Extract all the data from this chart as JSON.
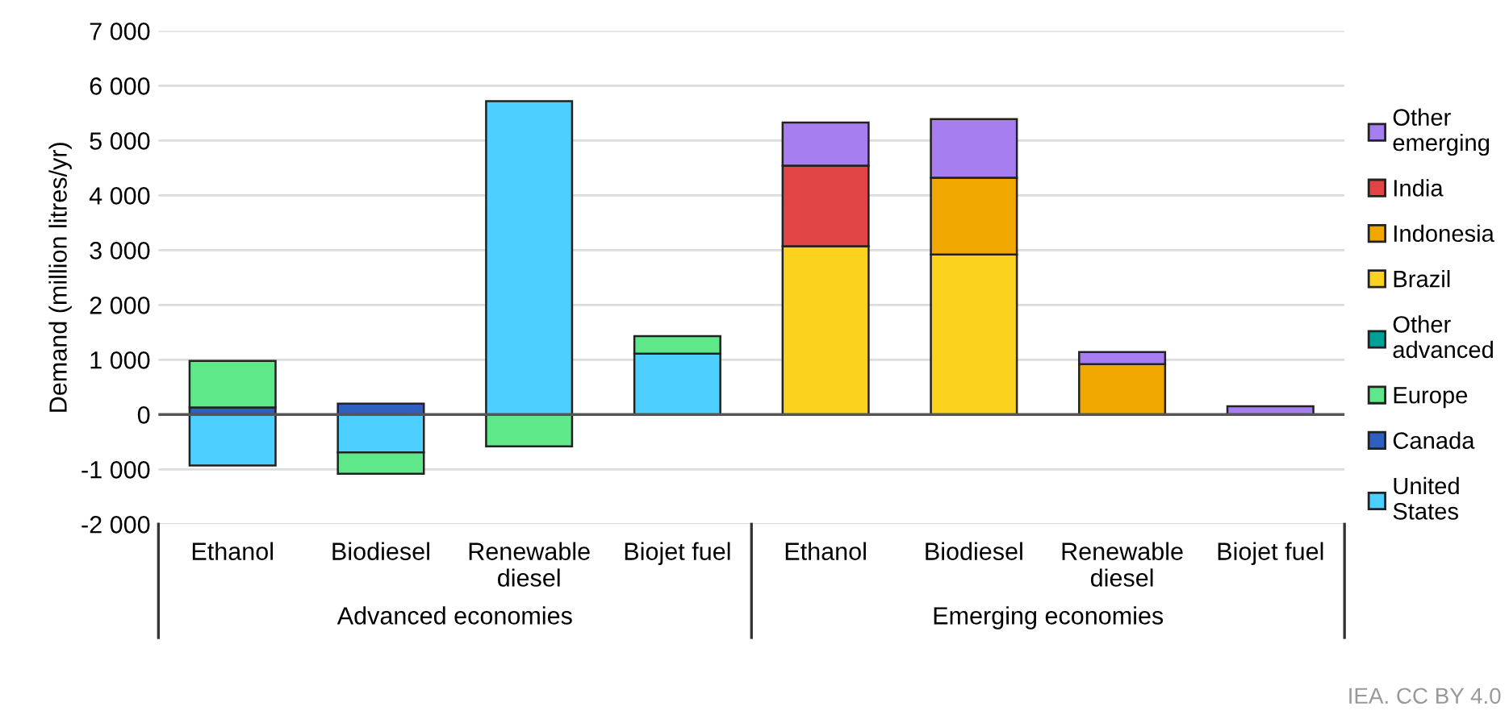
{
  "chart_data": {
    "type": "bar",
    "stacked": true,
    "ylabel": "Demand (million litres/yr)",
    "categories": [
      "Ethanol",
      "Biodiesel",
      "Renewable diesel",
      "Biojet fuel",
      "Ethanol",
      "Biodiesel",
      "Renewable diesel",
      "Biojet fuel"
    ],
    "series": [
      {
        "name": "United States",
        "color": "#4dcfff",
        "values": [
          -930,
          -690,
          5720,
          1110,
          null,
          null,
          null,
          null
        ]
      },
      {
        "name": "Canada",
        "color": "#2f5fbf",
        "values": [
          130,
          200,
          null,
          null,
          null,
          null,
          null,
          null
        ]
      },
      {
        "name": "Europe",
        "color": "#5fe88a",
        "values": [
          850,
          -390,
          -580,
          320,
          null,
          null,
          null,
          null
        ]
      },
      {
        "name": "Other advanced",
        "color": "#00a09a",
        "values": [
          null,
          null,
          null,
          null,
          null,
          null,
          null,
          null
        ]
      },
      {
        "name": "Brazil",
        "color": "#fbd31f",
        "values": [
          null,
          null,
          null,
          null,
          3070,
          2920,
          null,
          null
        ]
      },
      {
        "name": "Indonesia",
        "color": "#f0a800",
        "values": [
          null,
          null,
          null,
          null,
          null,
          1400,
          920,
          null
        ]
      },
      {
        "name": "India",
        "color": "#e04444",
        "values": [
          null,
          null,
          null,
          null,
          1470,
          null,
          null,
          null
        ]
      },
      {
        "name": "Other emerging",
        "color": "#a77ef0",
        "values": [
          null,
          null,
          null,
          null,
          790,
          1070,
          220,
          150
        ]
      }
    ],
    "ylim": [
      -2000,
      7000
    ],
    "yticks": [
      {
        "value": -2000,
        "label": "-2 000"
      },
      {
        "value": -1000,
        "label": "-1 000"
      },
      0,
      {
        "value": 1000,
        "label": "1 000"
      },
      {
        "value": 2000,
        "label": "2 000"
      },
      {
        "value": 3000,
        "label": "3 000"
      },
      {
        "value": 4000,
        "label": "4 000"
      },
      {
        "value": 5000,
        "label": "5 000"
      },
      {
        "value": 6000,
        "label": "6 000"
      },
      {
        "value": 7000,
        "label": "7 000"
      }
    ],
    "grid": "y",
    "legend": "right",
    "annotations": [
      "Advanced economies",
      "Emerging economies",
      "IEA. CC BY 4.0"
    ]
  }
}
